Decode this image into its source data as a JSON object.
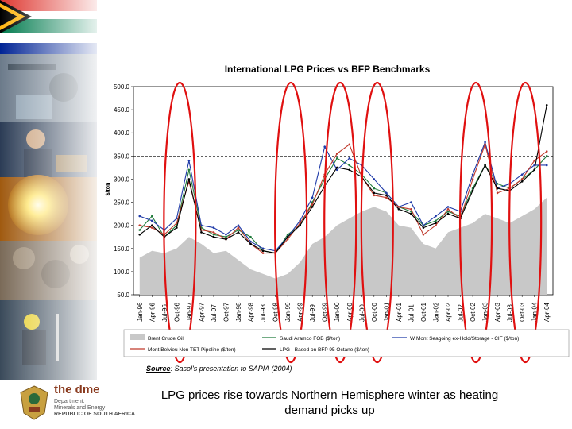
{
  "slide": {
    "caption": "LPG prices rise towards Northern Hemisphere winter as heating demand picks up",
    "source_label": "Source",
    "source_text": ": Sasol's presentation to SAPIA (2004)"
  },
  "logo": {
    "title": "the dme",
    "line1": "Department:",
    "line2": "Minerals and Energy",
    "line3": "REPUBLIC OF SOUTH AFRICA"
  },
  "colors": {
    "brent_fill": "#c8c8c8",
    "saudi": "#1f7a3a",
    "mont_belvieu_tet": "#c0392b",
    "mont_belvieu_cif": "#1f3aa8",
    "lpg_bfp": "#000000",
    "highlight_ellipse": "#e01010"
  },
  "chart_data": {
    "type": "line",
    "title": "International LPG Prices vs BFP Benchmarks",
    "ylabel": "$/ton",
    "ylim": [
      50,
      500
    ],
    "yticks": [
      "500.0",
      "450.0",
      "400.0",
      "350.0",
      "300.0",
      "250.0",
      "200.0",
      "150.0",
      "100.0",
      "50.0"
    ],
    "reference_line": 350,
    "categories": [
      "Jan-96",
      "Apr-96",
      "Jul-96",
      "Oct-96",
      "Jan-97",
      "Apr-97",
      "Jul-97",
      "Oct-97",
      "Jan-98",
      "Apr-98",
      "Jul-98",
      "Oct-98",
      "Jan-99",
      "Apr-99",
      "Jul-99",
      "Oct-99",
      "Jan-00",
      "Apr-00",
      "Jul-00",
      "Oct-00",
      "Jan-01",
      "Apr-01",
      "Jul-01",
      "Oct-01",
      "Jan-02",
      "Apr-02",
      "Jul-02",
      "Oct-02",
      "Jan-03",
      "Apr-03",
      "Jul-03",
      "Oct-03",
      "Jan-04",
      "Apr-04"
    ],
    "series": [
      {
        "name": "Brent Crude Oil",
        "style": "area",
        "values": [
          130,
          145,
          140,
          150,
          175,
          160,
          140,
          145,
          125,
          105,
          95,
          85,
          95,
          120,
          160,
          175,
          200,
          215,
          230,
          240,
          230,
          200,
          195,
          160,
          150,
          185,
          195,
          205,
          225,
          215,
          205,
          220,
          235,
          260
        ]
      },
      {
        "name": "Saudi Aramco FOB ($/ton)",
        "style": "line",
        "values": [
          190,
          220,
          175,
          200,
          320,
          195,
          180,
          175,
          190,
          175,
          145,
          140,
          180,
          200,
          250,
          300,
          345,
          330,
          310,
          280,
          270,
          240,
          230,
          200,
          210,
          230,
          220,
          280,
          330,
          290,
          280,
          300,
          320,
          350
        ]
      },
      {
        "name": "W Mont Seagoing ex-Hold/Storage - CIF ($/ton)",
        "style": "line",
        "values": [
          220,
          210,
          190,
          215,
          340,
          200,
          195,
          180,
          200,
          165,
          150,
          145,
          175,
          210,
          260,
          370,
          320,
          345,
          330,
          300,
          270,
          240,
          250,
          200,
          220,
          240,
          230,
          310,
          380,
          280,
          290,
          310,
          330,
          330
        ]
      },
      {
        "name": "Mont Belvieu Non TET Pipeline ($/ton)",
        "style": "line",
        "values": [
          200,
          195,
          180,
          205,
          295,
          190,
          185,
          170,
          195,
          160,
          140,
          140,
          170,
          205,
          245,
          310,
          355,
          375,
          305,
          265,
          260,
          240,
          235,
          180,
          200,
          235,
          215,
          300,
          375,
          270,
          280,
          300,
          340,
          360
        ]
      },
      {
        "name": "LPG - Based on BFP 95 Octane ($/ton)",
        "style": "line",
        "values": [
          180,
          200,
          175,
          195,
          300,
          185,
          175,
          170,
          185,
          160,
          145,
          140,
          175,
          200,
          240,
          285,
          325,
          320,
          305,
          270,
          265,
          235,
          225,
          195,
          205,
          225,
          215,
          275,
          330,
          280,
          275,
          295,
          320,
          460
        ]
      }
    ],
    "legend_position": "bottom"
  }
}
